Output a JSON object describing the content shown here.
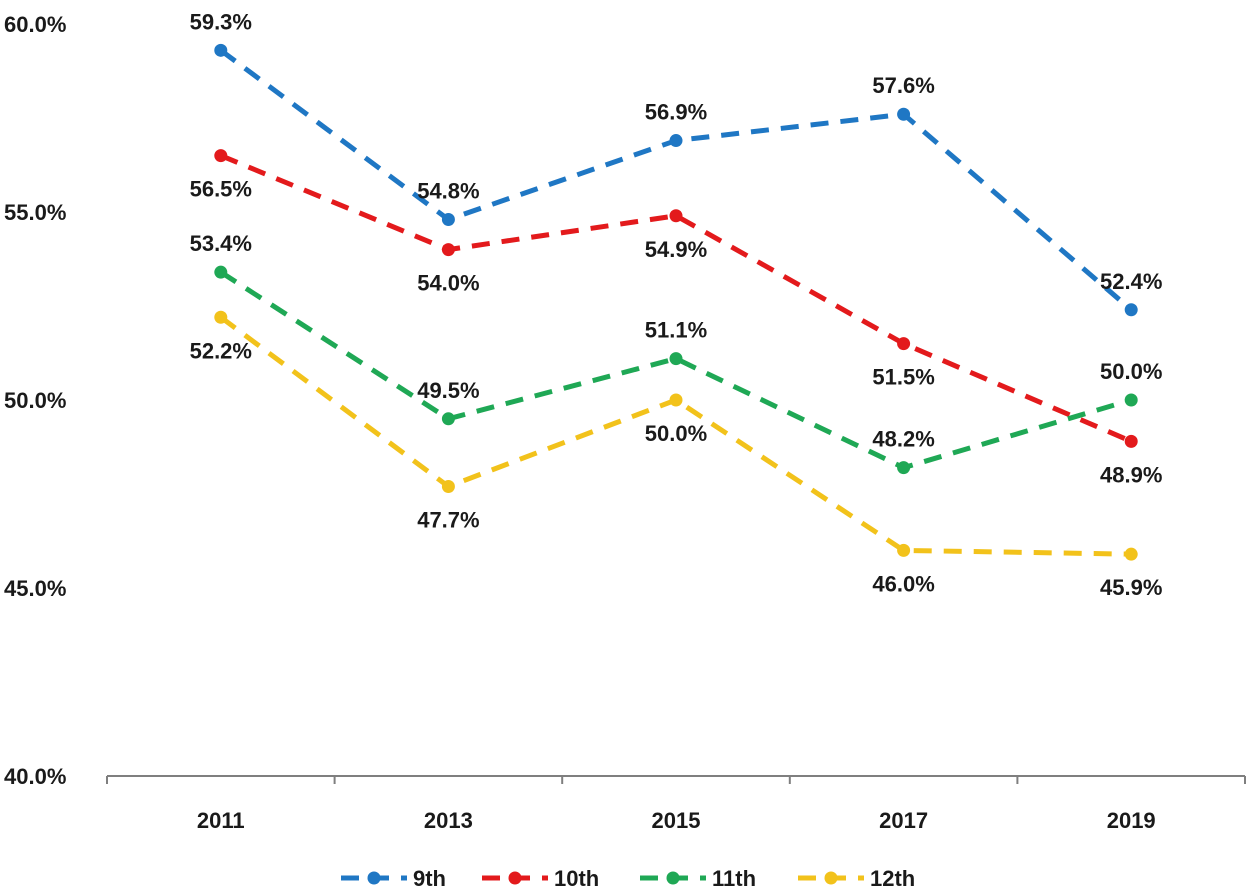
{
  "chart_data": {
    "type": "line",
    "title": "",
    "xlabel": "",
    "ylabel": "",
    "categories": [
      "2011",
      "2013",
      "2015",
      "2017",
      "2019"
    ],
    "ylim": [
      40,
      60
    ],
    "yticks": [
      40,
      45,
      50,
      55,
      60
    ],
    "ytick_labels": [
      "40.0%",
      "45.0%",
      "50.0%",
      "55.0%",
      "60.0%"
    ],
    "grid": false,
    "legend_position": "bottom",
    "line_style": "dashed",
    "series": [
      {
        "name": "9th",
        "color": "#1F77C4",
        "values": [
          59.3,
          54.8,
          56.9,
          57.6,
          52.4
        ],
        "labels": [
          "59.3%",
          "54.8%",
          "56.9%",
          "57.6%",
          "52.4%"
        ],
        "label_positions": [
          "above",
          "above",
          "above",
          "above",
          "above"
        ]
      },
      {
        "name": "10th",
        "color": "#E31A1C",
        "values": [
          56.5,
          54.0,
          54.9,
          51.5,
          48.9
        ],
        "labels": [
          "56.5%",
          "54.0%",
          "54.9%",
          "51.5%",
          "48.9%"
        ],
        "label_positions": [
          "below",
          "below",
          "below",
          "below",
          "below"
        ]
      },
      {
        "name": "11th",
        "color": "#1FA855",
        "values": [
          53.4,
          49.5,
          51.1,
          48.2,
          50.0
        ],
        "labels": [
          "53.4%",
          "49.5%",
          "51.1%",
          "48.2%",
          "50.0%"
        ],
        "label_positions": [
          "above",
          "above",
          "above",
          "above",
          "above"
        ]
      },
      {
        "name": "12th",
        "color": "#F2C21B",
        "values": [
          52.2,
          47.7,
          50.0,
          46.0,
          45.9
        ],
        "labels": [
          "52.2%",
          "47.7%",
          "50.0%",
          "46.0%",
          "45.9%"
        ],
        "label_positions": [
          "below",
          "below",
          "below",
          "below",
          "below"
        ]
      }
    ]
  }
}
